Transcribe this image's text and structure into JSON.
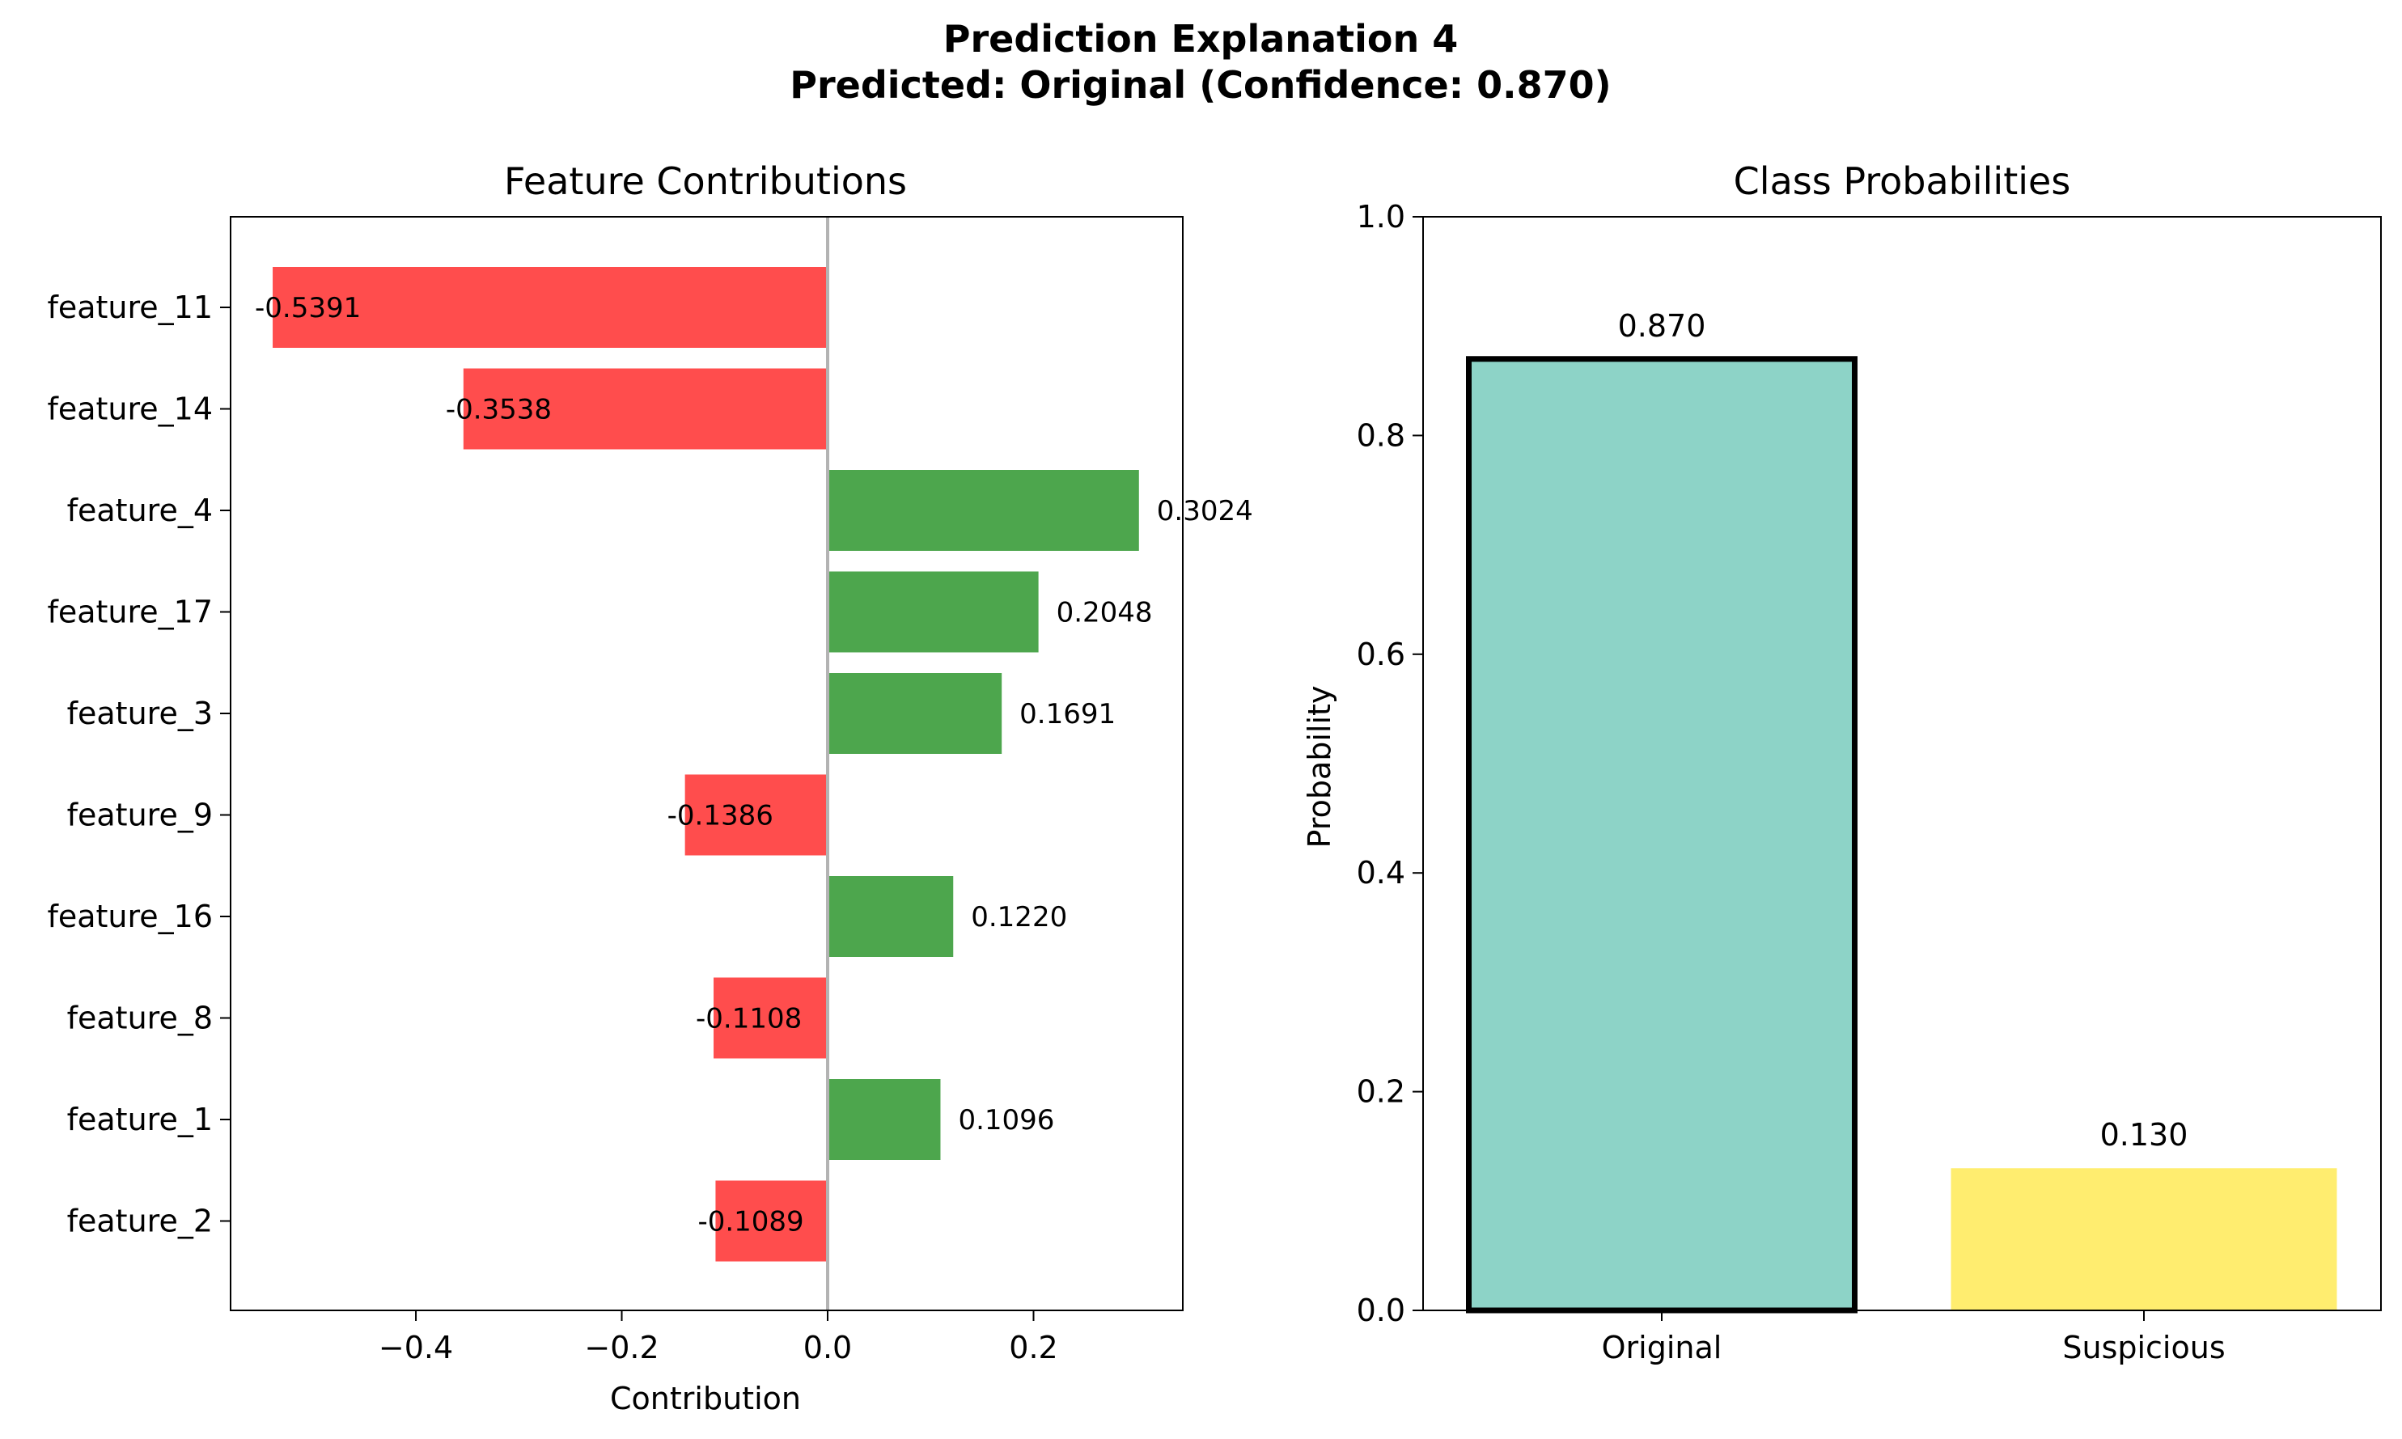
{
  "figure": {
    "title_line1": "Prediction Explanation 4",
    "title_line2": "Predicted: Original (Confidence: 0.870)"
  },
  "chart_data": [
    {
      "type": "bar",
      "orientation": "horizontal",
      "title": "Feature Contributions",
      "xlabel": "Contribution",
      "ylabel": "",
      "categories": [
        "feature_11",
        "feature_14",
        "feature_4",
        "feature_17",
        "feature_3",
        "feature_9",
        "feature_16",
        "feature_8",
        "feature_1",
        "feature_2"
      ],
      "values": [
        -0.5391,
        -0.3538,
        0.3024,
        0.2048,
        0.1691,
        -0.1386,
        0.122,
        -0.1108,
        0.1096,
        -0.1089
      ],
      "value_labels": [
        "-0.5391",
        "-0.3538",
        "0.3024",
        "0.2048",
        "0.1691",
        "-0.1386",
        "0.1220",
        "-0.1108",
        "0.1096",
        "-0.1089"
      ],
      "xlim": [
        -0.58,
        0.345
      ],
      "xticks": [
        -0.4,
        -0.2,
        0.0,
        0.2
      ],
      "xtick_labels": [
        "−0.4",
        "−0.2",
        "0.0",
        "0.2"
      ],
      "colors": {
        "positive": "#4da64d",
        "negative": "#ff4d4d",
        "zero_line": "#b3b3b3"
      },
      "grid": false
    },
    {
      "type": "bar",
      "title": "Class Probabilities",
      "xlabel": "",
      "ylabel": "Probability",
      "categories": [
        "Original",
        "Suspicious"
      ],
      "values": [
        0.87,
        0.13
      ],
      "value_labels": [
        "0.870",
        "0.130"
      ],
      "ylim": [
        0.0,
        1.0
      ],
      "yticks": [
        0.0,
        0.2,
        0.4,
        0.6,
        0.8,
        1.0
      ],
      "ytick_labels": [
        "0.0",
        "0.2",
        "0.4",
        "0.6",
        "0.8",
        "1.0"
      ],
      "colors": [
        "#8dd3c7",
        "#ffed6f"
      ],
      "highlighted": "Original",
      "grid": false
    }
  ]
}
